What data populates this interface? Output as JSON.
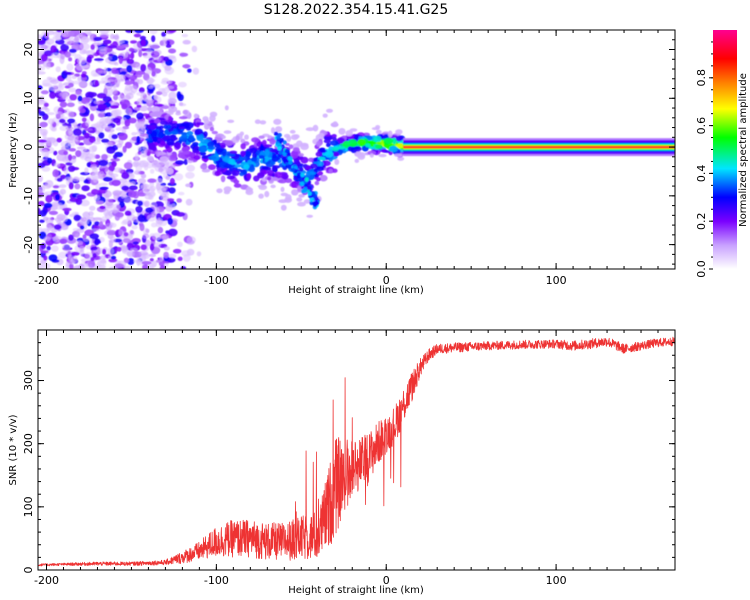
{
  "figure": {
    "title": "S128.2022.354.15.41.G25"
  },
  "chart_data": [
    {
      "type": "heatmap",
      "xlabel": "Height of straight line (km)",
      "ylabel": "Frequency (Hz)",
      "xlim": [
        -205,
        170
      ],
      "ylim": [
        -25,
        24
      ],
      "x_ticks": [
        -200,
        -100,
        0,
        100
      ],
      "y_ticks": [
        -20,
        -10,
        0,
        10,
        20
      ],
      "grid": false,
      "colorbar": {
        "label": "Normalized spectral amplitude",
        "range": [
          0,
          1
        ],
        "ticks": [
          0.0,
          0.2,
          0.4,
          0.6,
          0.8
        ],
        "colormap": [
          "#ffffff",
          "#7a00ff",
          "#0000ff",
          "#00e5ff",
          "#00ff00",
          "#ffff00",
          "#ff7f00",
          "#ff0000",
          "#ff0090"
        ]
      },
      "features": {
        "noise_region_x": [
          -205,
          -125
        ],
        "noise_frequency_spread_hz": 25,
        "transition_track": [
          {
            "x": -140,
            "f": 2.5,
            "amp": 0.35
          },
          {
            "x": -125,
            "f": 3.0,
            "amp": 0.35
          },
          {
            "x": -110,
            "f": 1.5,
            "amp": 0.4
          },
          {
            "x": -100,
            "f": -1.5,
            "amp": 0.4
          },
          {
            "x": -85,
            "f": -4.0,
            "amp": 0.4
          },
          {
            "x": -70,
            "f": -2.0,
            "amp": 0.4
          },
          {
            "x": -55,
            "f": -4.5,
            "amp": 0.35
          },
          {
            "x": -45,
            "f": -6.0,
            "amp": 0.35
          },
          {
            "x": -35,
            "f": -1.0,
            "amp": 0.4
          },
          {
            "x": -20,
            "f": 0.8,
            "amp": 0.55
          },
          {
            "x": -5,
            "f": 0.8,
            "amp": 0.65
          },
          {
            "x": 10,
            "f": 0.3,
            "amp": 0.7
          }
        ],
        "stable_line": {
          "x_start": 10,
          "x_end": 170,
          "f": 0.0,
          "amp": 1.0
        }
      }
    },
    {
      "type": "line",
      "xlabel": "Height of straight line (km)",
      "ylabel": "SNR (10 * v/v)",
      "xlim": [
        -205,
        170
      ],
      "ylim": [
        0,
        380
      ],
      "x_ticks": [
        -200,
        -100,
        0,
        100
      ],
      "y_ticks": [
        0,
        100,
        200,
        300
      ],
      "grid": false,
      "color": "#ee3333",
      "series": [
        {
          "x": [
            -205,
            -190,
            -170,
            -150,
            -130,
            -120,
            -110,
            -100,
            -90,
            -80,
            -70,
            -60,
            -50,
            -40,
            -35,
            -30,
            -25,
            -20,
            -15,
            -10,
            -5,
            0,
            5,
            10,
            15,
            20,
            25,
            30,
            40,
            60,
            80,
            100,
            110,
            120,
            130,
            140,
            150,
            160,
            170
          ],
          "y": [
            8,
            9,
            10,
            10,
            12,
            20,
            30,
            45,
            50,
            50,
            45,
            45,
            50,
            55,
            90,
            130,
            150,
            160,
            170,
            180,
            200,
            215,
            230,
            260,
            290,
            320,
            340,
            350,
            352,
            355,
            357,
            358,
            355,
            358,
            362,
            350,
            355,
            360,
            362
          ],
          "noise": [
            2,
            2,
            3,
            3,
            4,
            10,
            15,
            25,
            30,
            30,
            30,
            30,
            35,
            40,
            60,
            80,
            60,
            50,
            40,
            40,
            35,
            30,
            30,
            30,
            25,
            15,
            10,
            8,
            8,
            7,
            7,
            7,
            8,
            8,
            8,
            8,
            7,
            7,
            7
          ]
        }
      ]
    }
  ]
}
